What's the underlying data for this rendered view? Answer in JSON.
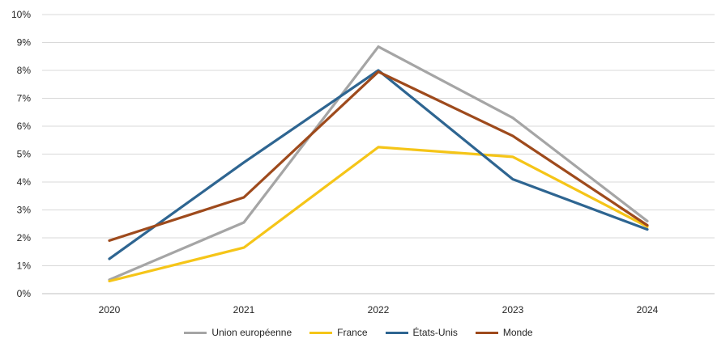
{
  "chart_data": {
    "type": "line",
    "title": "",
    "xlabel": "",
    "ylabel": "",
    "categories": [
      "2020",
      "2021",
      "2022",
      "2023",
      "2024"
    ],
    "y_ticks": [
      "0%",
      "1%",
      "2%",
      "3%",
      "4%",
      "5%",
      "6%",
      "7%",
      "8%",
      "9%",
      "10%"
    ],
    "ylim": [
      0,
      10
    ],
    "grid": true,
    "legend_position": "bottom",
    "series": [
      {
        "name": "Union européenne",
        "color": "#A5A5A5",
        "values": [
          0.5,
          2.55,
          8.85,
          6.3,
          2.6
        ]
      },
      {
        "name": "France",
        "color": "#F5C518",
        "values": [
          0.45,
          1.65,
          5.25,
          4.9,
          2.4
        ]
      },
      {
        "name": "États-Unis",
        "color": "#2E6591",
        "values": [
          1.25,
          4.7,
          8.0,
          4.1,
          2.3
        ]
      },
      {
        "name": "Monde",
        "color": "#9E4A1C",
        "values": [
          1.9,
          3.45,
          7.95,
          5.65,
          2.45
        ]
      }
    ]
  }
}
